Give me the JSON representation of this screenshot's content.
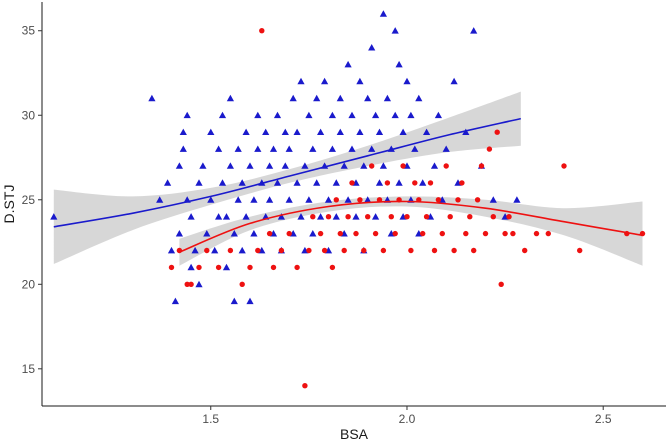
{
  "chart_data": {
    "type": "scatter",
    "xlabel": "BSA",
    "ylabel": "D.STJ",
    "xlim": [
      1.07,
      2.66
    ],
    "ylim": [
      12.8,
      36.7
    ],
    "x_ticks": [
      1.5,
      2.0,
      2.5
    ],
    "x_tick_labels": [
      "1.5",
      "2.0",
      "2.5"
    ],
    "y_ticks": [
      15,
      20,
      25,
      30,
      35
    ],
    "y_tick_labels": [
      "15",
      "20",
      "25",
      "30",
      "35"
    ],
    "grid": false,
    "legend": "none",
    "colors": {
      "blue": "#1a1acc",
      "red": "#ee1111",
      "band": "#bdbdbd"
    },
    "series": [
      {
        "marker": "triangle",
        "color": "#1a1acc",
        "points": [
          [
            1.1,
            24
          ],
          [
            1.35,
            31
          ],
          [
            1.37,
            25
          ],
          [
            1.39,
            26
          ],
          [
            1.4,
            22
          ],
          [
            1.41,
            19
          ],
          [
            1.42,
            23
          ],
          [
            1.42,
            27
          ],
          [
            1.43,
            28
          ],
          [
            1.43,
            29
          ],
          [
            1.44,
            25
          ],
          [
            1.44,
            30
          ],
          [
            1.45,
            21
          ],
          [
            1.45,
            24
          ],
          [
            1.46,
            22
          ],
          [
            1.47,
            26
          ],
          [
            1.47,
            20
          ],
          [
            1.48,
            27
          ],
          [
            1.49,
            23
          ],
          [
            1.5,
            25
          ],
          [
            1.5,
            29
          ],
          [
            1.51,
            22
          ],
          [
            1.52,
            24
          ],
          [
            1.52,
            28
          ],
          [
            1.53,
            26
          ],
          [
            1.53,
            30
          ],
          [
            1.54,
            21
          ],
          [
            1.54,
            24
          ],
          [
            1.55,
            27
          ],
          [
            1.55,
            31
          ],
          [
            1.56,
            19
          ],
          [
            1.56,
            23
          ],
          [
            1.57,
            25
          ],
          [
            1.57,
            28
          ],
          [
            1.58,
            22
          ],
          [
            1.58,
            26
          ],
          [
            1.59,
            29
          ],
          [
            1.59,
            24
          ],
          [
            1.6,
            19
          ],
          [
            1.6,
            27
          ],
          [
            1.61,
            23
          ],
          [
            1.61,
            25
          ],
          [
            1.62,
            28
          ],
          [
            1.62,
            30
          ],
          [
            1.63,
            22
          ],
          [
            1.63,
            26
          ],
          [
            1.64,
            24
          ],
          [
            1.64,
            29
          ],
          [
            1.65,
            25
          ],
          [
            1.65,
            27
          ],
          [
            1.66,
            23
          ],
          [
            1.66,
            28
          ],
          [
            1.67,
            26
          ],
          [
            1.67,
            30
          ],
          [
            1.68,
            22
          ],
          [
            1.68,
            24
          ],
          [
            1.69,
            27
          ],
          [
            1.69,
            29
          ],
          [
            1.7,
            25
          ],
          [
            1.7,
            28
          ],
          [
            1.71,
            23
          ],
          [
            1.71,
            31
          ],
          [
            1.72,
            26
          ],
          [
            1.72,
            29
          ],
          [
            1.73,
            24
          ],
          [
            1.73,
            32
          ],
          [
            1.74,
            22
          ],
          [
            1.74,
            27
          ],
          [
            1.75,
            25
          ],
          [
            1.75,
            30
          ],
          [
            1.76,
            28
          ],
          [
            1.76,
            23
          ],
          [
            1.77,
            26
          ],
          [
            1.77,
            31
          ],
          [
            1.78,
            24
          ],
          [
            1.78,
            29
          ],
          [
            1.79,
            27
          ],
          [
            1.79,
            32
          ],
          [
            1.8,
            22
          ],
          [
            1.8,
            25
          ],
          [
            1.81,
            28
          ],
          [
            1.81,
            30
          ],
          [
            1.82,
            26
          ],
          [
            1.82,
            24
          ],
          [
            1.83,
            29
          ],
          [
            1.83,
            31
          ],
          [
            1.84,
            23
          ],
          [
            1.84,
            27
          ],
          [
            1.85,
            25
          ],
          [
            1.85,
            33
          ],
          [
            1.86,
            28
          ],
          [
            1.86,
            30
          ],
          [
            1.87,
            24
          ],
          [
            1.87,
            26
          ],
          [
            1.88,
            29
          ],
          [
            1.88,
            32
          ],
          [
            1.89,
            22
          ],
          [
            1.89,
            27
          ],
          [
            1.9,
            25
          ],
          [
            1.9,
            31
          ],
          [
            1.91,
            28
          ],
          [
            1.91,
            34
          ],
          [
            1.92,
            24
          ],
          [
            1.92,
            30
          ],
          [
            1.93,
            26
          ],
          [
            1.93,
            29
          ],
          [
            1.94,
            36
          ],
          [
            1.94,
            27
          ],
          [
            1.95,
            25
          ],
          [
            1.95,
            31
          ],
          [
            1.96,
            23
          ],
          [
            1.96,
            28
          ],
          [
            1.97,
            35
          ],
          [
            1.97,
            30
          ],
          [
            1.98,
            26
          ],
          [
            1.98,
            33
          ],
          [
            1.99,
            24
          ],
          [
            1.99,
            29
          ],
          [
            2.0,
            27
          ],
          [
            2.0,
            32
          ],
          [
            2.01,
            25
          ],
          [
            2.01,
            30
          ],
          [
            2.02,
            28
          ],
          [
            2.03,
            23
          ],
          [
            2.03,
            31
          ],
          [
            2.04,
            26
          ],
          [
            2.05,
            29
          ],
          [
            2.06,
            24
          ],
          [
            2.07,
            27
          ],
          [
            2.08,
            30
          ],
          [
            2.09,
            25
          ],
          [
            2.1,
            28
          ],
          [
            2.12,
            32
          ],
          [
            2.13,
            26
          ],
          [
            2.15,
            29
          ],
          [
            2.17,
            35
          ],
          [
            2.19,
            27
          ],
          [
            2.22,
            25
          ],
          [
            2.25,
            24
          ],
          [
            2.28,
            25
          ]
        ]
      },
      {
        "marker": "circle",
        "color": "#ee1111",
        "points": [
          [
            1.4,
            21
          ],
          [
            1.42,
            22
          ],
          [
            1.44,
            20
          ],
          [
            1.45,
            20
          ],
          [
            1.47,
            21
          ],
          [
            1.49,
            22
          ],
          [
            1.52,
            21
          ],
          [
            1.55,
            22
          ],
          [
            1.58,
            20
          ],
          [
            1.6,
            21
          ],
          [
            1.62,
            22
          ],
          [
            1.63,
            35
          ],
          [
            1.65,
            23
          ],
          [
            1.66,
            21
          ],
          [
            1.68,
            22
          ],
          [
            1.7,
            23
          ],
          [
            1.72,
            21
          ],
          [
            1.74,
            14
          ],
          [
            1.75,
            22
          ],
          [
            1.76,
            24
          ],
          [
            1.78,
            23
          ],
          [
            1.79,
            22
          ],
          [
            1.8,
            24
          ],
          [
            1.81,
            21
          ],
          [
            1.82,
            25
          ],
          [
            1.83,
            23
          ],
          [
            1.84,
            22
          ],
          [
            1.85,
            24
          ],
          [
            1.86,
            26
          ],
          [
            1.87,
            23
          ],
          [
            1.88,
            25
          ],
          [
            1.89,
            22
          ],
          [
            1.9,
            24
          ],
          [
            1.91,
            27
          ],
          [
            1.92,
            23
          ],
          [
            1.93,
            25
          ],
          [
            1.94,
            22
          ],
          [
            1.95,
            26
          ],
          [
            1.96,
            24
          ],
          [
            1.97,
            23
          ],
          [
            1.98,
            25
          ],
          [
            1.99,
            27
          ],
          [
            2.0,
            24
          ],
          [
            2.01,
            22
          ],
          [
            2.02,
            26
          ],
          [
            2.03,
            25
          ],
          [
            2.04,
            23
          ],
          [
            2.05,
            24
          ],
          [
            2.06,
            26
          ],
          [
            2.07,
            22
          ],
          [
            2.08,
            25
          ],
          [
            2.09,
            23
          ],
          [
            2.1,
            27
          ],
          [
            2.11,
            24
          ],
          [
            2.12,
            22
          ],
          [
            2.13,
            25
          ],
          [
            2.14,
            26
          ],
          [
            2.15,
            23
          ],
          [
            2.16,
            24
          ],
          [
            2.17,
            22
          ],
          [
            2.18,
            25
          ],
          [
            2.19,
            27
          ],
          [
            2.2,
            23
          ],
          [
            2.21,
            28
          ],
          [
            2.22,
            24
          ],
          [
            2.23,
            29
          ],
          [
            2.24,
            20
          ],
          [
            2.25,
            23
          ],
          [
            2.26,
            24
          ],
          [
            2.27,
            23
          ],
          [
            2.3,
            22
          ],
          [
            2.33,
            23
          ],
          [
            2.36,
            23
          ],
          [
            2.4,
            27
          ],
          [
            2.44,
            22
          ],
          [
            2.56,
            23
          ],
          [
            2.6,
            23
          ]
        ]
      }
    ],
    "fits": [
      {
        "color": "#1a1acc",
        "x": [
          1.1,
          1.3,
          1.5,
          1.7,
          1.9,
          2.1,
          2.29
        ],
        "y": [
          23.4,
          24.2,
          25.2,
          26.4,
          27.6,
          28.8,
          29.8
        ],
        "lower": [
          21.2,
          23.2,
          24.7,
          26.0,
          27.0,
          27.8,
          28.2
        ],
        "upper": [
          25.6,
          25.2,
          25.7,
          26.8,
          28.2,
          29.8,
          31.4
        ]
      },
      {
        "color": "#ee1111",
        "x": [
          1.42,
          1.6,
          1.8,
          2.0,
          2.2,
          2.4,
          2.6
        ],
        "y": [
          21.9,
          23.6,
          24.6,
          24.9,
          24.5,
          23.7,
          22.9
        ],
        "lower": [
          21.1,
          23.2,
          24.3,
          24.6,
          24.0,
          22.9,
          21.1
        ],
        "upper": [
          22.7,
          24.0,
          24.9,
          25.2,
          25.0,
          24.5,
          24.9
        ]
      }
    ]
  }
}
